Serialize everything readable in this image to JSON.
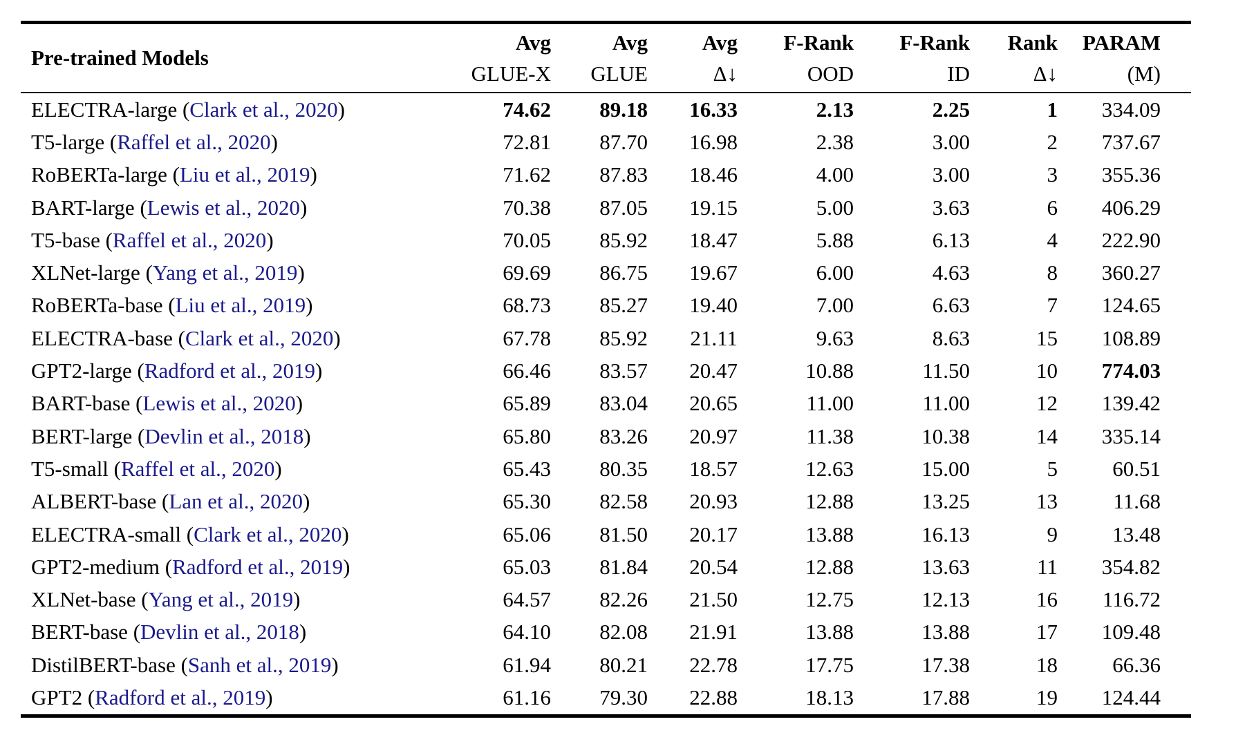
{
  "colors": {
    "background": "#ffffff",
    "text": "#000000",
    "citation_link": "#1a1a8c"
  },
  "table": {
    "model_header": "Pre-trained Models",
    "citation_prefix": " (",
    "citation_suffix": ")",
    "columns": [
      {
        "line1": "Avg",
        "line2": "GLUE-X"
      },
      {
        "line1": "Avg",
        "line2": "GLUE"
      },
      {
        "line1": "Avg",
        "line2": "Δ↓"
      },
      {
        "line1": "F-Rank",
        "line2": "OOD"
      },
      {
        "line1": "F-Rank",
        "line2": "ID"
      },
      {
        "line1": "Rank",
        "line2": "Δ↓"
      },
      {
        "line1": "PARAM",
        "line2": "(M)"
      }
    ],
    "rows": [
      {
        "model": "ELECTRA-large",
        "citation": "Clark et al., 2020",
        "values": [
          "74.62",
          "89.18",
          "16.33",
          "2.13",
          "2.25",
          "1",
          "334.09"
        ],
        "bold": [
          true,
          true,
          true,
          true,
          true,
          true,
          false
        ]
      },
      {
        "model": "T5-large",
        "citation": "Raffel et al., 2020",
        "values": [
          "72.81",
          "87.70",
          "16.98",
          "2.38",
          "3.00",
          "2",
          "737.67"
        ],
        "bold": [
          false,
          false,
          false,
          false,
          false,
          false,
          false
        ]
      },
      {
        "model": "RoBERTa-large",
        "citation": "Liu et al., 2019",
        "values": [
          "71.62",
          "87.83",
          "18.46",
          "4.00",
          "3.00",
          "3",
          "355.36"
        ],
        "bold": [
          false,
          false,
          false,
          false,
          false,
          false,
          false
        ]
      },
      {
        "model": "BART-large",
        "citation": "Lewis et al., 2020",
        "values": [
          "70.38",
          "87.05",
          "19.15",
          "5.00",
          "3.63",
          "6",
          "406.29"
        ],
        "bold": [
          false,
          false,
          false,
          false,
          false,
          false,
          false
        ]
      },
      {
        "model": "T5-base",
        "citation": "Raffel et al., 2020",
        "values": [
          "70.05",
          "85.92",
          "18.47",
          "5.88",
          "6.13",
          "4",
          "222.90"
        ],
        "bold": [
          false,
          false,
          false,
          false,
          false,
          false,
          false
        ]
      },
      {
        "model": "XLNet-large",
        "citation": "Yang et al., 2019",
        "values": [
          "69.69",
          "86.75",
          "19.67",
          "6.00",
          "4.63",
          "8",
          "360.27"
        ],
        "bold": [
          false,
          false,
          false,
          false,
          false,
          false,
          false
        ]
      },
      {
        "model": "RoBERTa-base",
        "citation": "Liu et al., 2019",
        "values": [
          "68.73",
          "85.27",
          "19.40",
          "7.00",
          "6.63",
          "7",
          "124.65"
        ],
        "bold": [
          false,
          false,
          false,
          false,
          false,
          false,
          false
        ]
      },
      {
        "model": "ELECTRA-base",
        "citation": "Clark et al., 2020",
        "values": [
          "67.78",
          "85.92",
          "21.11",
          "9.63",
          "8.63",
          "15",
          "108.89"
        ],
        "bold": [
          false,
          false,
          false,
          false,
          false,
          false,
          false
        ]
      },
      {
        "model": "GPT2-large",
        "citation": "Radford et al., 2019",
        "values": [
          "66.46",
          "83.57",
          "20.47",
          "10.88",
          "11.50",
          "10",
          "774.03"
        ],
        "bold": [
          false,
          false,
          false,
          false,
          false,
          false,
          true
        ]
      },
      {
        "model": "BART-base",
        "citation": "Lewis et al., 2020",
        "values": [
          "65.89",
          "83.04",
          "20.65",
          "11.00",
          "11.00",
          "12",
          "139.42"
        ],
        "bold": [
          false,
          false,
          false,
          false,
          false,
          false,
          false
        ]
      },
      {
        "model": "BERT-large",
        "citation": "Devlin et al., 2018",
        "values": [
          "65.80",
          "83.26",
          "20.97",
          "11.38",
          "10.38",
          "14",
          "335.14"
        ],
        "bold": [
          false,
          false,
          false,
          false,
          false,
          false,
          false
        ]
      },
      {
        "model": "T5-small",
        "citation": "Raffel et al., 2020",
        "values": [
          "65.43",
          "80.35",
          "18.57",
          "12.63",
          "15.00",
          "5",
          "60.51"
        ],
        "bold": [
          false,
          false,
          false,
          false,
          false,
          false,
          false
        ]
      },
      {
        "model": "ALBERT-base",
        "citation": "Lan et al., 2020",
        "values": [
          "65.30",
          "82.58",
          "20.93",
          "12.88",
          "13.25",
          "13",
          "11.68"
        ],
        "bold": [
          false,
          false,
          false,
          false,
          false,
          false,
          false
        ]
      },
      {
        "model": "ELECTRA-small",
        "citation": "Clark et al., 2020",
        "values": [
          "65.06",
          "81.50",
          "20.17",
          "13.88",
          "16.13",
          "9",
          "13.48"
        ],
        "bold": [
          false,
          false,
          false,
          false,
          false,
          false,
          false
        ]
      },
      {
        "model": "GPT2-medium",
        "citation": "Radford et al., 2019",
        "values": [
          "65.03",
          "81.84",
          "20.54",
          "12.88",
          "13.63",
          "11",
          "354.82"
        ],
        "bold": [
          false,
          false,
          false,
          false,
          false,
          false,
          false
        ]
      },
      {
        "model": "XLNet-base",
        "citation": "Yang et al., 2019",
        "values": [
          "64.57",
          "82.26",
          "21.50",
          "12.75",
          "12.13",
          "16",
          "116.72"
        ],
        "bold": [
          false,
          false,
          false,
          false,
          false,
          false,
          false
        ]
      },
      {
        "model": "BERT-base",
        "citation": "Devlin et al., 2018",
        "values": [
          "64.10",
          "82.08",
          "21.91",
          "13.88",
          "13.88",
          "17",
          "109.48"
        ],
        "bold": [
          false,
          false,
          false,
          false,
          false,
          false,
          false
        ]
      },
      {
        "model": "DistilBERT-base",
        "citation": "Sanh et al., 2019",
        "values": [
          "61.94",
          "80.21",
          "22.78",
          "17.75",
          "17.38",
          "18",
          "66.36"
        ],
        "bold": [
          false,
          false,
          false,
          false,
          false,
          false,
          false
        ]
      },
      {
        "model": "GPT2",
        "citation": "Radford et al., 2019",
        "values": [
          "61.16",
          "79.30",
          "22.88",
          "18.13",
          "17.88",
          "19",
          "124.44"
        ],
        "bold": [
          false,
          false,
          false,
          false,
          false,
          false,
          false
        ]
      }
    ]
  }
}
